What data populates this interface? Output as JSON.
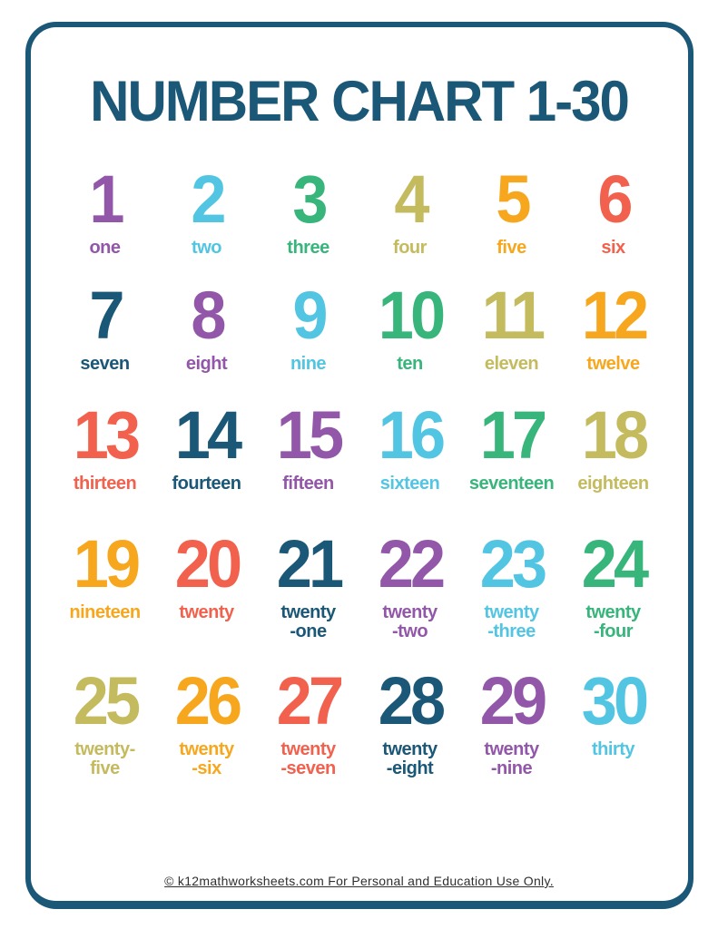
{
  "page": {
    "title": "NUMBER CHART 1-30",
    "footer": "© k12mathworksheets.com For Personal and Education Use Only.",
    "border_color": "#1b5776",
    "title_color": "#1b5776",
    "background_color": "#ffffff",
    "footer_text_color": "#2f2f2f"
  },
  "palette": {
    "purple": "#9257a8",
    "cyan": "#52c5e3",
    "green": "#37b57b",
    "olive": "#c4bb5f",
    "amber": "#f7a71e",
    "coral": "#f2614e",
    "teal": "#1b5776"
  },
  "layout": {
    "columns": 6,
    "rows": 5
  },
  "numbers": [
    {
      "value": "1",
      "word_lines": [
        "one"
      ],
      "color": "#9257a8"
    },
    {
      "value": "2",
      "word_lines": [
        "two"
      ],
      "color": "#52c5e3"
    },
    {
      "value": "3",
      "word_lines": [
        "three"
      ],
      "color": "#37b57b"
    },
    {
      "value": "4",
      "word_lines": [
        "four"
      ],
      "color": "#c4bb5f"
    },
    {
      "value": "5",
      "word_lines": [
        "five"
      ],
      "color": "#f7a71e"
    },
    {
      "value": "6",
      "word_lines": [
        "six"
      ],
      "color": "#f2614e"
    },
    {
      "value": "7",
      "word_lines": [
        "seven"
      ],
      "color": "#1b5776"
    },
    {
      "value": "8",
      "word_lines": [
        "eight"
      ],
      "color": "#9257a8"
    },
    {
      "value": "9",
      "word_lines": [
        "nine"
      ],
      "color": "#52c5e3"
    },
    {
      "value": "10",
      "word_lines": [
        "ten"
      ],
      "color": "#37b57b"
    },
    {
      "value": "11",
      "word_lines": [
        "eleven"
      ],
      "color": "#c4bb5f"
    },
    {
      "value": "12",
      "word_lines": [
        "twelve"
      ],
      "color": "#f7a71e"
    },
    {
      "value": "13",
      "word_lines": [
        "thirteen"
      ],
      "color": "#f2614e"
    },
    {
      "value": "14",
      "word_lines": [
        "fourteen"
      ],
      "color": "#1b5776"
    },
    {
      "value": "15",
      "word_lines": [
        "fifteen"
      ],
      "color": "#9257a8"
    },
    {
      "value": "16",
      "word_lines": [
        "sixteen"
      ],
      "color": "#52c5e3"
    },
    {
      "value": "17",
      "word_lines": [
        "seventeen"
      ],
      "color": "#37b57b"
    },
    {
      "value": "18",
      "word_lines": [
        "eighteen"
      ],
      "color": "#c4bb5f"
    },
    {
      "value": "19",
      "word_lines": [
        "nineteen"
      ],
      "color": "#f7a71e"
    },
    {
      "value": "20",
      "word_lines": [
        "twenty"
      ],
      "color": "#f2614e"
    },
    {
      "value": "21",
      "word_lines": [
        "twenty",
        "-one"
      ],
      "color": "#1b5776"
    },
    {
      "value": "22",
      "word_lines": [
        "twenty",
        "-two"
      ],
      "color": "#9257a8"
    },
    {
      "value": "23",
      "word_lines": [
        "twenty",
        "-three"
      ],
      "color": "#52c5e3"
    },
    {
      "value": "24",
      "word_lines": [
        "twenty",
        "-four"
      ],
      "color": "#37b57b"
    },
    {
      "value": "25",
      "word_lines": [
        "twenty-",
        "five"
      ],
      "color": "#c4bb5f"
    },
    {
      "value": "26",
      "word_lines": [
        "twenty",
        "-six"
      ],
      "color": "#f7a71e"
    },
    {
      "value": "27",
      "word_lines": [
        "twenty",
        "-seven"
      ],
      "color": "#f2614e"
    },
    {
      "value": "28",
      "word_lines": [
        "twenty",
        "-eight"
      ],
      "color": "#1b5776"
    },
    {
      "value": "29",
      "word_lines": [
        "twenty",
        "-nine"
      ],
      "color": "#9257a8"
    },
    {
      "value": "30",
      "word_lines": [
        "thirty"
      ],
      "color": "#52c5e3"
    }
  ]
}
